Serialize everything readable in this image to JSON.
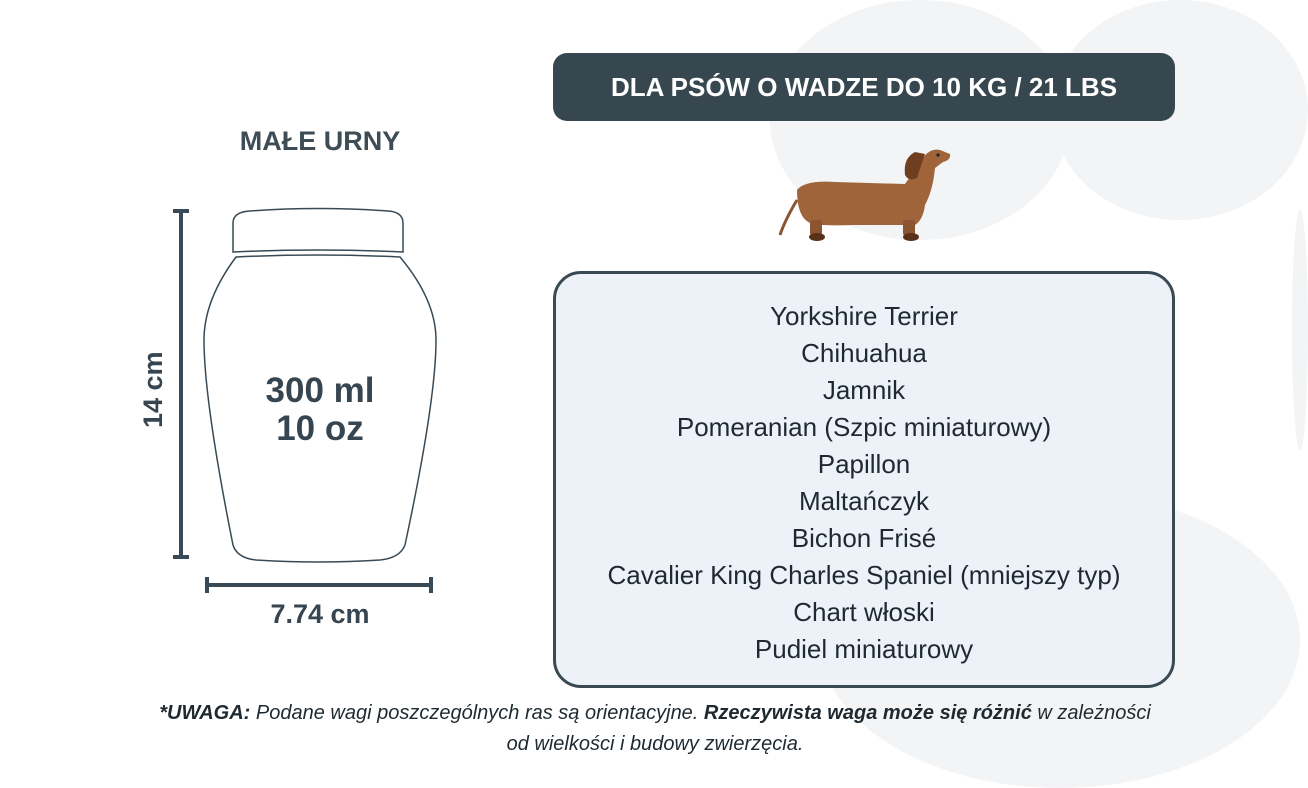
{
  "header": {
    "title": "DLA PSÓW O WADZE DO 10 KG / 21 LBS"
  },
  "product": {
    "subtitle": "MAŁE URNY",
    "volume_ml": "300 ml",
    "volume_oz": "10 oz",
    "height": "14 cm",
    "width": "7.74 cm"
  },
  "breeds": [
    "Yorkshire Terrier",
    "Chihuahua",
    "Jamnik",
    "Pomeranian (Szpic miniaturowy)",
    "Papillon",
    "Maltańczyk",
    "Bichon Frisé",
    "Cavalier King Charles Spaniel (mniejszy typ)",
    "Chart włoski",
    "Pudiel miniaturowy"
  ],
  "note": {
    "label": "*UWAGA:",
    "text1": " Podane wagi poszczególnych ras są orientacyjne. ",
    "bold1": "Rzeczywista waga może się różnić",
    "text2": " w zależności od wielkości i budowy zwierzęcia."
  },
  "icons": {
    "dog": "dachshund-illustration",
    "background": "paw-print"
  },
  "colors": {
    "primary": "#37474f",
    "panel": "#edf2f9",
    "dog": "#a0643a"
  }
}
